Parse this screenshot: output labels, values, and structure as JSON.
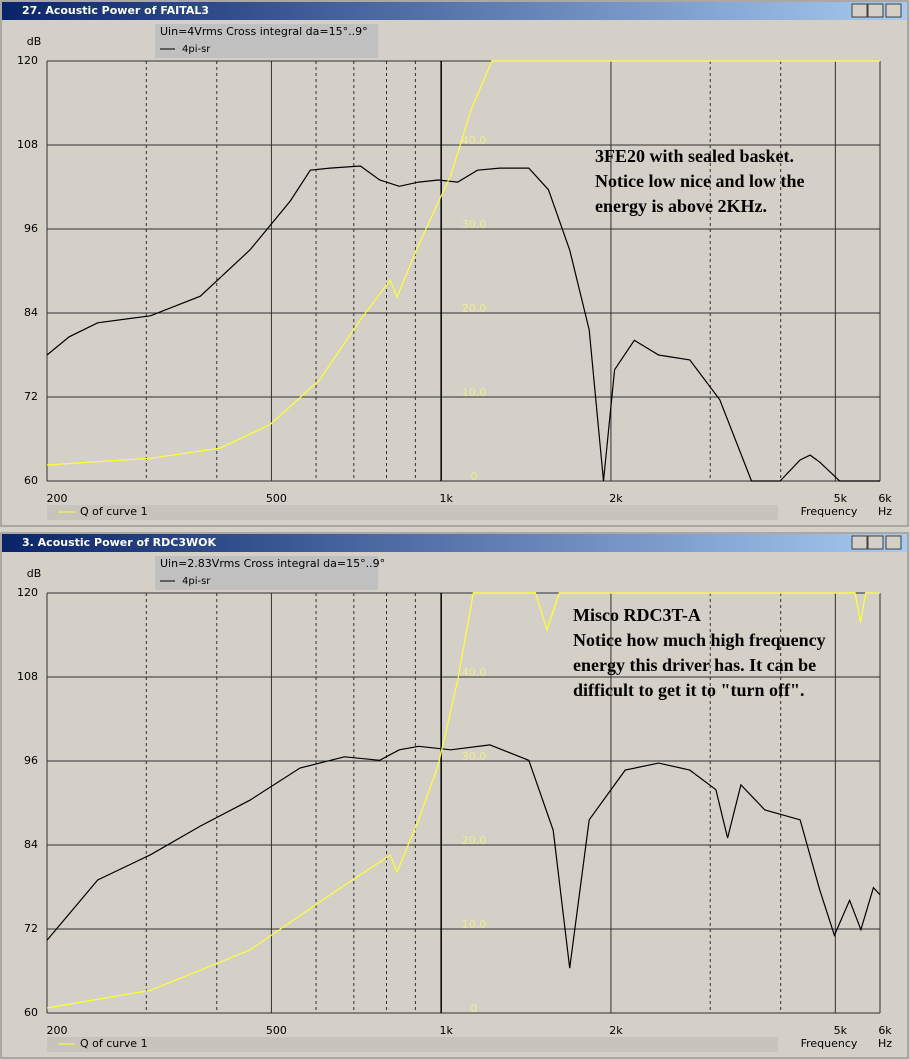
{
  "chart_data": [
    {
      "type": "line",
      "title": "27. Acoustic Power of FAITAL3",
      "ylabel": "dB",
      "xlabel": "Frequency",
      "xunit": "Hz",
      "legend_title": "Uin=4Vrms Cross integral da=15°..9°",
      "annotation": [
        "3FE20 with sealed basket.",
        "Notice low nice and low the",
        "energy is above 2KHz."
      ],
      "xscale": "log",
      "xlim": [
        200,
        6000
      ],
      "xticks": [
        200,
        500,
        {
          "value": 1000,
          "label": "1k"
        },
        {
          "value": 2000,
          "label": "2k"
        },
        {
          "value": 5000,
          "label": "5k"
        },
        {
          "value": 6000,
          "label": "6k"
        }
      ],
      "xminor": [
        300,
        400,
        600,
        700,
        800,
        900,
        3000,
        4000
      ],
      "ylim": [
        60,
        120
      ],
      "yticks": [
        60,
        72,
        84,
        96,
        108,
        120
      ],
      "y2lim": [
        0,
        50
      ],
      "y2ticks": [
        0,
        {
          "value": 10,
          "label": "10.0"
        },
        {
          "value": 20,
          "label": "20.0"
        },
        {
          "value": 30,
          "label": "30.0"
        },
        {
          "value": 40,
          "label": "40.0"
        }
      ],
      "grid": true,
      "series": [
        {
          "name": "4pi-sr",
          "color": "#000000",
          "x": [
            200,
            219,
            246,
            305,
            374,
            458,
            540,
            586,
            635,
            719,
            778,
            843,
            912,
            988,
            1070,
            1160,
            1270,
            1430,
            1550,
            1690,
            1830,
            1940,
            2030,
            2200,
            2430,
            2760,
            3120,
            3550,
            3990,
            4330,
            4510,
            4690,
            5090,
            6000
          ],
          "values": [
            78,
            80.6,
            82.6,
            83.6,
            86.4,
            93,
            100,
            104.4,
            104.7,
            105,
            103,
            102.1,
            102.7,
            103,
            102.7,
            104.4,
            104.7,
            104.7,
            101.6,
            93,
            81.6,
            60,
            75.9,
            80.1,
            78,
            77.3,
            71.6,
            60,
            60,
            63,
            63.7,
            62.7,
            60,
            60
          ]
        },
        {
          "name": "Q of curve 1",
          "color": "#ffff33",
          "axis": "y2",
          "x": [
            200,
            305,
            405,
            497,
            608,
            719,
            812,
            835,
            912,
            1040,
            1130,
            1230,
            6000
          ],
          "values": [
            1.9,
            2.7,
            3.9,
            6.7,
            12,
            19.2,
            23.9,
            21.9,
            28.1,
            36.4,
            44.2,
            50,
            50
          ]
        }
      ]
    },
    {
      "type": "line",
      "title": "3. Acoustic Power of RDC3WOK",
      "ylabel": "dB",
      "xlabel": "Frequency",
      "xunit": "Hz",
      "legend_title": "Uin=2.83Vrms Cross integral da=15°..9°",
      "annotation": [
        "Misco RDC3T-A",
        "Notice how much high frequency",
        "energy this driver has. It can be",
        "difficult to get it to \"turn off\"."
      ],
      "xscale": "log",
      "xlim": [
        200,
        6000
      ],
      "xticks": [
        200,
        500,
        {
          "value": 1000,
          "label": "1k"
        },
        {
          "value": 2000,
          "label": "2k"
        },
        {
          "value": 5000,
          "label": "5k"
        },
        {
          "value": 6000,
          "label": "6k"
        }
      ],
      "xminor": [
        300,
        400,
        600,
        700,
        800,
        900,
        3000,
        4000
      ],
      "ylim": [
        60,
        120
      ],
      "yticks": [
        60,
        72,
        84,
        96,
        108,
        120
      ],
      "y2lim": [
        0,
        50
      ],
      "y2ticks": [
        0,
        {
          "value": 10,
          "label": "10.0"
        },
        {
          "value": 20,
          "label": "20.0"
        },
        {
          "value": 30,
          "label": "30.0"
        },
        {
          "value": 40,
          "label": "40.0"
        }
      ],
      "grid": true,
      "series": [
        {
          "name": "4pi-sr",
          "color": "#000000",
          "x": [
            200,
            246,
            305,
            374,
            458,
            562,
            674,
            778,
            843,
            912,
            1040,
            1220,
            1430,
            1580,
            1690,
            1830,
            2120,
            2430,
            2760,
            3070,
            3220,
            3400,
            3750,
            4330,
            4690,
            4980,
            5300,
            5550,
            5840,
            6000
          ],
          "values": [
            70.4,
            79,
            82.6,
            86.7,
            90.4,
            95,
            96.6,
            96.1,
            97.6,
            98.1,
            97.6,
            98.3,
            96.1,
            86.1,
            66.4,
            87.6,
            94.7,
            95.7,
            94.7,
            91.9,
            85,
            92.6,
            89,
            87.6,
            77.6,
            71.1,
            76.1,
            71.9,
            77.9,
            76.9
          ]
        },
        {
          "name": "Q of curve 1",
          "color": "#ffff33",
          "axis": "y2",
          "x": [
            200,
            305,
            458,
            653,
            812,
            835,
            912,
            988,
            1070,
            1140,
            1470,
            1540,
            1620,
            5420,
            5540,
            5660,
            6000
          ],
          "values": [
            0.6,
            2.7,
            7.5,
            14.6,
            18.8,
            16.8,
            23,
            29.5,
            39.6,
            50,
            50,
            45.6,
            50,
            50,
            46.5,
            50,
            50
          ]
        }
      ]
    }
  ]
}
